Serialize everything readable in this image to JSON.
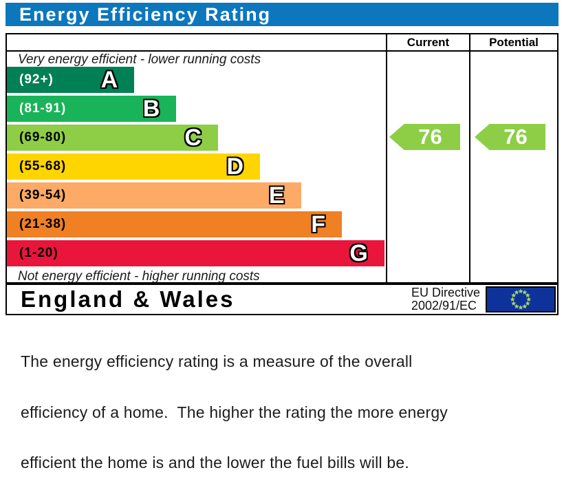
{
  "title": "Energy Efficiency Rating",
  "colors": {
    "title_bar_background": "#0d77bd",
    "title_text": "#ffffff",
    "border": "#000000"
  },
  "table": {
    "current_header": "Current",
    "potential_header": "Potential"
  },
  "chart_data": {
    "type": "bar",
    "title": "Energy Efficiency Rating",
    "top_note": "Very energy efficient - lower running costs",
    "bottom_note": "Not energy efficient - higher running costs",
    "bands": [
      {
        "letter": "A",
        "range": "(92+)",
        "min": 92,
        "max": 100,
        "color": "#008054",
        "label_color": "#ffffff",
        "width_pct": 33.6
      },
      {
        "letter": "B",
        "range": "(81-91)",
        "min": 81,
        "max": 91,
        "color": "#19b459",
        "label_color": "#ffffff",
        "width_pct": 44.7
      },
      {
        "letter": "C",
        "range": "(69-80)",
        "min": 69,
        "max": 80,
        "color": "#8dce46",
        "label_color": "#000000",
        "width_pct": 55.7
      },
      {
        "letter": "D",
        "range": "(55-68)",
        "min": 55,
        "max": 68,
        "color": "#ffd500",
        "label_color": "#000000",
        "width_pct": 66.8
      },
      {
        "letter": "E",
        "range": "(39-54)",
        "min": 39,
        "max": 54,
        "color": "#fcaa65",
        "label_color": "#000000",
        "width_pct": 77.6
      },
      {
        "letter": "F",
        "range": "(21-38)",
        "min": 21,
        "max": 38,
        "color": "#ef8023",
        "label_color": "#000000",
        "width_pct": 88.4
      },
      {
        "letter": "G",
        "range": "(1-20)",
        "min": 1,
        "max": 20,
        "color": "#e9153b",
        "label_color": "#000000",
        "width_pct": 99.6
      }
    ],
    "current": {
      "value": 76,
      "band": "C",
      "color": "#8dce46"
    },
    "potential": {
      "value": 76,
      "band": "C",
      "color": "#8dce46"
    }
  },
  "footer": {
    "region": "England & Wales",
    "directive_line1": "EU Directive",
    "directive_line2": "2002/91/EC",
    "eu_flag": {
      "background": "#0d339b",
      "star_color": "#a8d96c",
      "star_count": 12
    }
  },
  "description": {
    "line1": "The energy efficiency rating is a measure of the overall",
    "line2": "efficiency of a home.  The higher the rating the more energy",
    "line3": "efficient the home is and the lower the fuel bills will be."
  }
}
